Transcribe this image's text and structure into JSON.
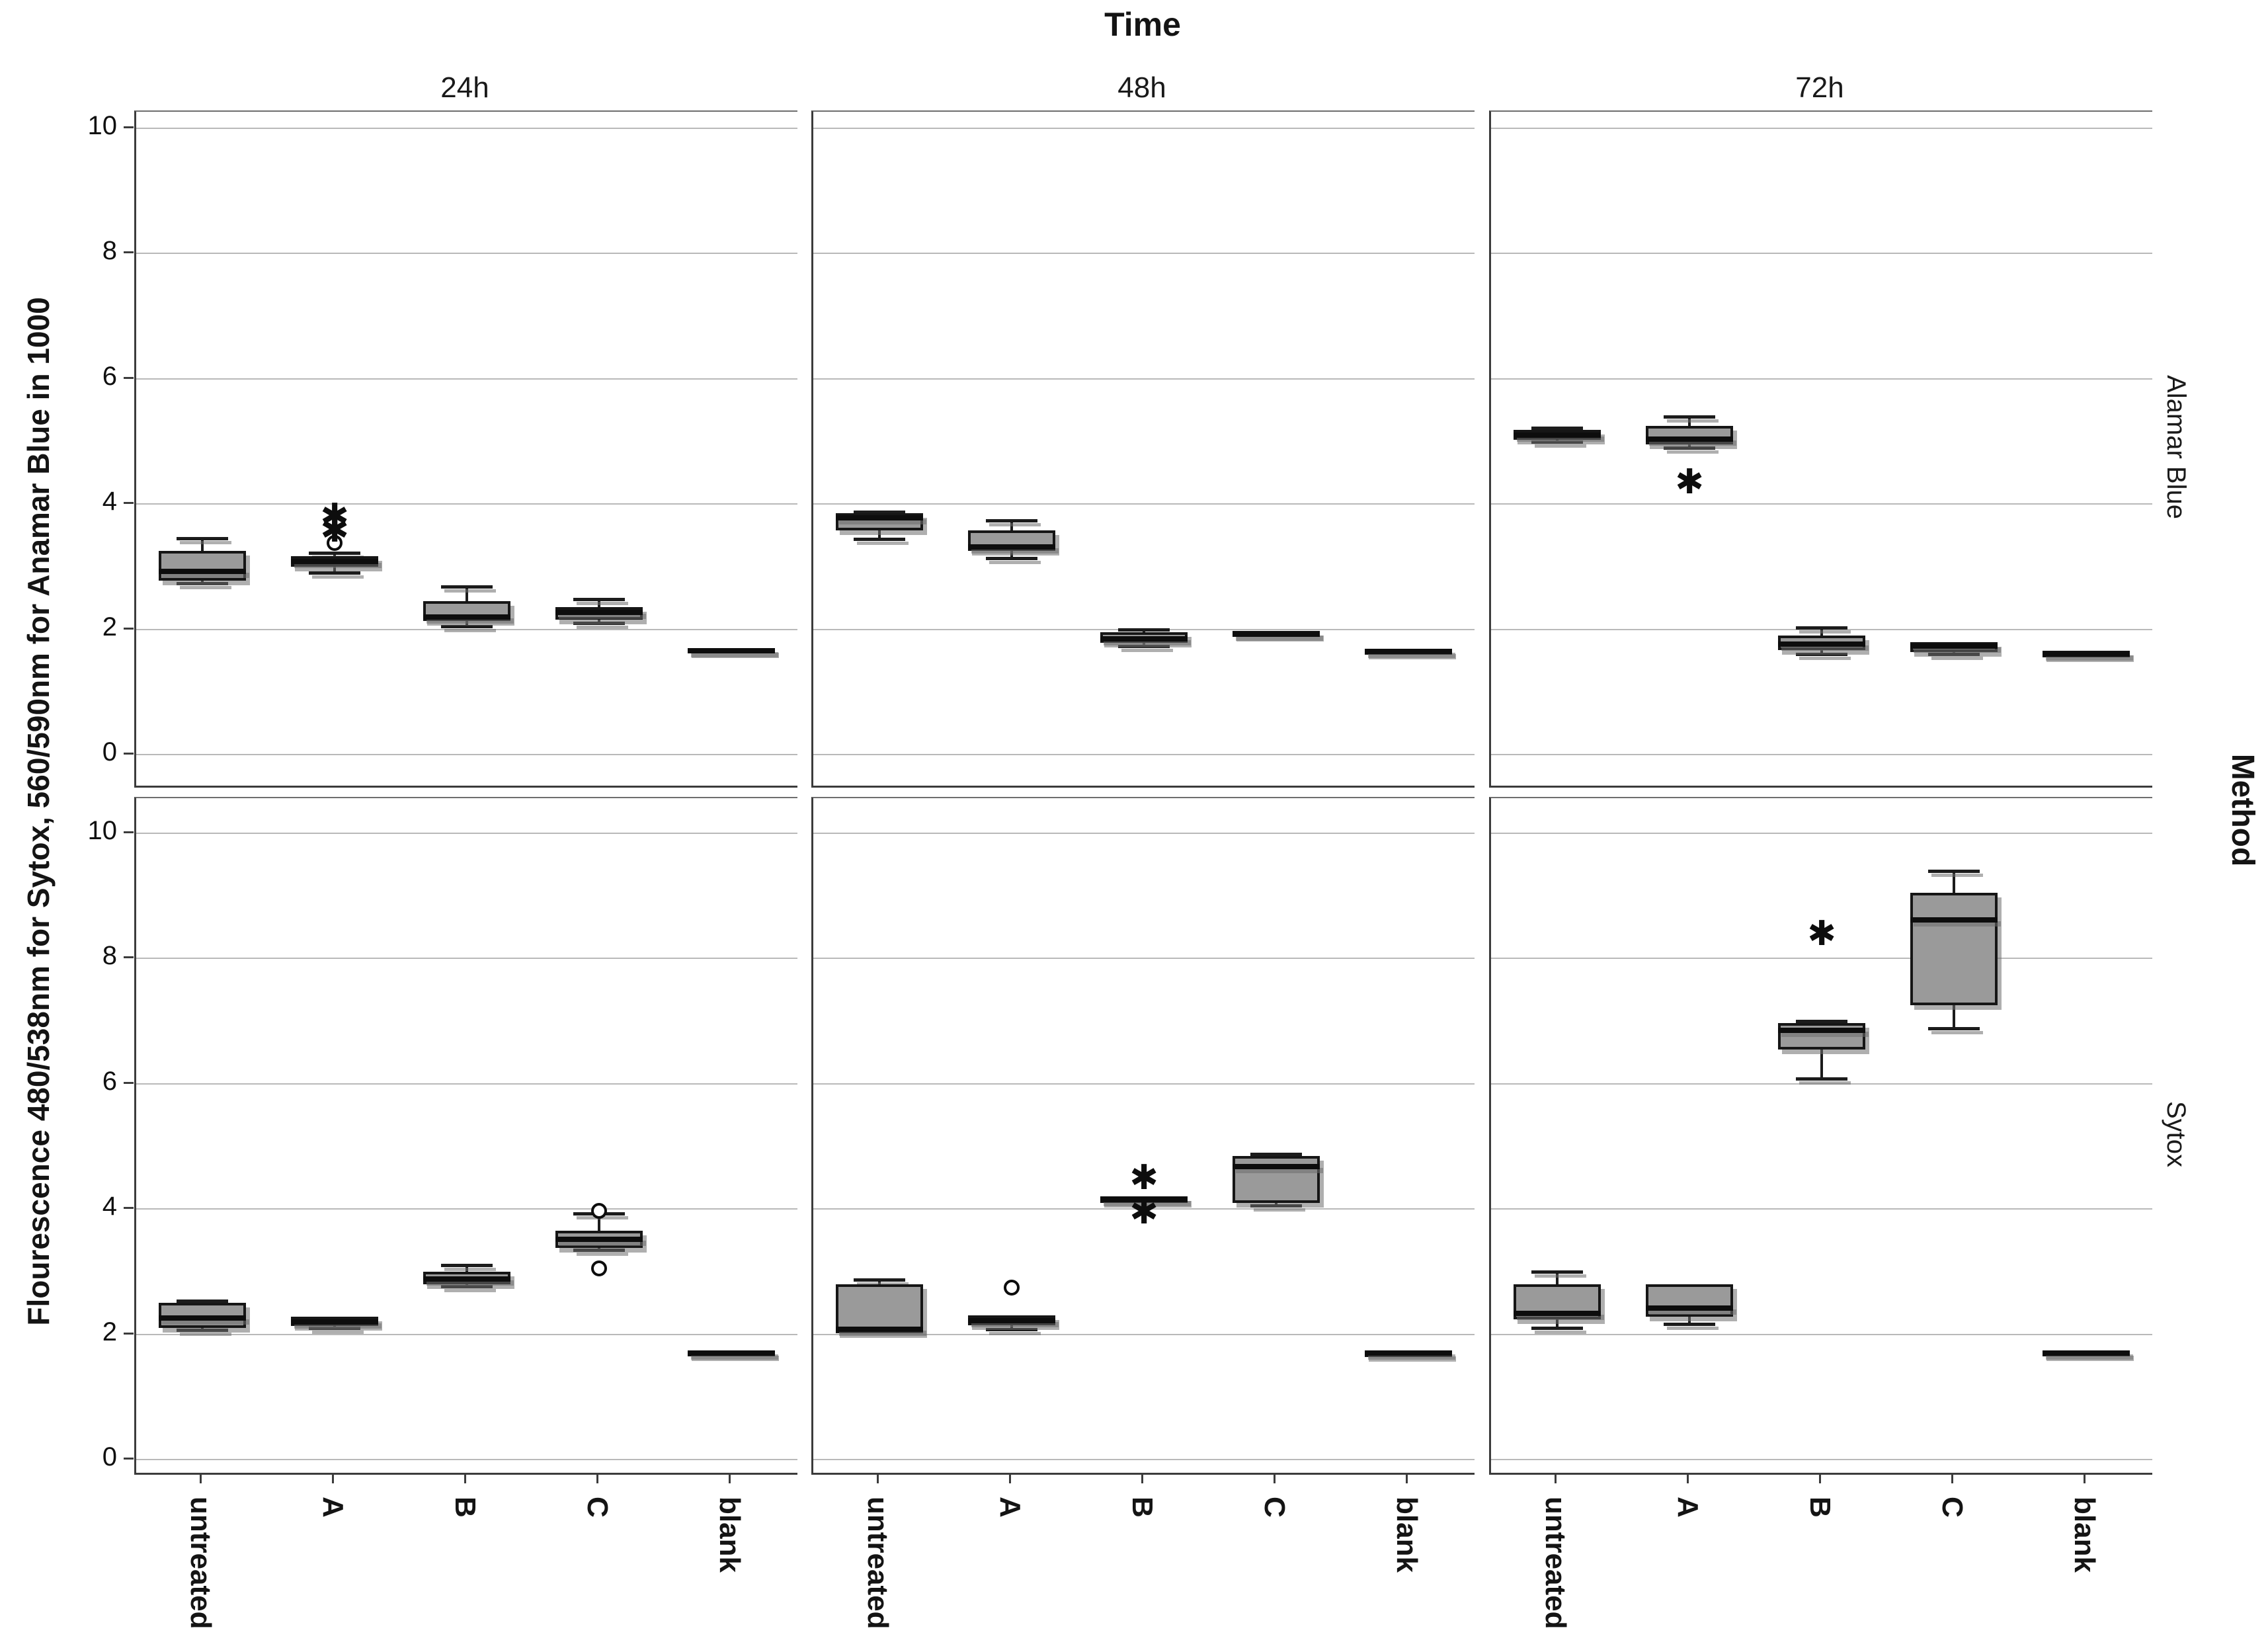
{
  "title": "Time",
  "y_axis_label": "Flourescence 480/538nm for Sytox, 560/590nm for Anamar Blue in 1000",
  "right_outer_label": "Method",
  "col_headers": [
    "24h",
    "48h",
    "72h"
  ],
  "row_headers": [
    "Alamar Blue",
    "Sytox"
  ],
  "categories": [
    "untreated",
    "A",
    "B",
    "C",
    "blank"
  ],
  "y_tick_labels": [
    "0",
    "2",
    "4",
    "6",
    "8",
    "10"
  ],
  "colors": {
    "box_fill": "#9a9a9a",
    "box_border": "#161616",
    "grid": "#b9b9b9",
    "frame": "#3c3c3c",
    "background": "#ffffff"
  },
  "chart_data": {
    "type": "boxplot",
    "facet_title": "Time",
    "facet_cols": [
      "24h",
      "48h",
      "72h"
    ],
    "facet_rows": [
      "Alamar Blue",
      "Sytox"
    ],
    "categories": [
      "untreated",
      "A",
      "B",
      "C",
      "blank"
    ],
    "ylim": [
      0,
      10
    ],
    "y_ticks": [
      0,
      2,
      4,
      6,
      8,
      10
    ],
    "grid": true,
    "panels": [
      {
        "row": "Alamar Blue",
        "col": "24h",
        "boxes": [
          {
            "category": "untreated",
            "q1": 2.78,
            "median": 2.93,
            "q3": 3.25,
            "lo": 2.73,
            "hi": 3.45,
            "outliers": []
          },
          {
            "category": "A",
            "q1": 3.0,
            "median": 3.08,
            "q3": 3.17,
            "lo": 2.9,
            "hi": 3.22,
            "outliers": [
              {
                "type": "circle",
                "value": 3.38
              },
              {
                "type": "star",
                "value": 3.58
              },
              {
                "type": "star",
                "value": 3.8
              }
            ]
          },
          {
            "category": "B",
            "q1": 2.13,
            "median": 2.2,
            "q3": 2.45,
            "lo": 2.05,
            "hi": 2.68,
            "outliers": []
          },
          {
            "category": "C",
            "q1": 2.15,
            "median": 2.27,
            "q3": 2.35,
            "lo": 2.1,
            "hi": 2.48,
            "outliers": []
          },
          {
            "category": "blank",
            "q1": 1.63,
            "median": 1.66,
            "q3": 1.7,
            "lo": 1.63,
            "hi": 1.7,
            "outliers": []
          }
        ]
      },
      {
        "row": "Alamar Blue",
        "col": "48h",
        "boxes": [
          {
            "category": "untreated",
            "q1": 3.58,
            "median": 3.78,
            "q3": 3.85,
            "lo": 3.44,
            "hi": 3.88,
            "outliers": []
          },
          {
            "category": "A",
            "q1": 3.25,
            "median": 3.32,
            "q3": 3.58,
            "lo": 3.14,
            "hi": 3.74,
            "outliers": []
          },
          {
            "category": "B",
            "q1": 1.78,
            "median": 1.85,
            "q3": 1.95,
            "lo": 1.73,
            "hi": 2.0,
            "outliers": []
          },
          {
            "category": "C",
            "q1": 1.88,
            "median": 1.92,
            "q3": 1.97,
            "lo": 1.86,
            "hi": 1.99,
            "outliers": []
          },
          {
            "category": "blank",
            "q1": 1.62,
            "median": 1.65,
            "q3": 1.68,
            "lo": 1.62,
            "hi": 1.68,
            "outliers": []
          }
        ]
      },
      {
        "row": "Alamar Blue",
        "col": "72h",
        "boxes": [
          {
            "category": "untreated",
            "q1": 5.03,
            "median": 5.1,
            "q3": 5.18,
            "lo": 5.0,
            "hi": 5.22,
            "outliers": []
          },
          {
            "category": "A",
            "q1": 4.95,
            "median": 5.04,
            "q3": 5.25,
            "lo": 4.9,
            "hi": 5.4,
            "outliers": [
              {
                "type": "star",
                "value": 4.35
              }
            ]
          },
          {
            "category": "B",
            "q1": 1.67,
            "median": 1.76,
            "q3": 1.9,
            "lo": 1.6,
            "hi": 2.03,
            "outliers": []
          },
          {
            "category": "C",
            "q1": 1.64,
            "median": 1.73,
            "q3": 1.8,
            "lo": 1.6,
            "hi": 1.82,
            "outliers": []
          },
          {
            "category": "blank",
            "q1": 1.55,
            "median": 1.61,
            "q3": 1.66,
            "lo": 1.53,
            "hi": 1.68,
            "outliers": []
          }
        ]
      },
      {
        "row": "Sytox",
        "col": "24h",
        "boxes": [
          {
            "category": "untreated",
            "q1": 2.1,
            "median": 2.26,
            "q3": 2.5,
            "lo": 2.07,
            "hi": 2.53,
            "outliers": []
          },
          {
            "category": "A",
            "q1": 2.13,
            "median": 2.2,
            "q3": 2.28,
            "lo": 2.1,
            "hi": 2.3,
            "outliers": []
          },
          {
            "category": "B",
            "q1": 2.8,
            "median": 2.88,
            "q3": 3.0,
            "lo": 2.77,
            "hi": 3.1,
            "outliers": []
          },
          {
            "category": "C",
            "q1": 3.38,
            "median": 3.52,
            "q3": 3.65,
            "lo": 3.35,
            "hi": 3.93,
            "outliers": [
              {
                "type": "circle",
                "value": 3.97
              },
              {
                "type": "circle",
                "value": 3.05
              }
            ]
          },
          {
            "category": "blank",
            "q1": 1.68,
            "median": 1.7,
            "q3": 1.73,
            "lo": 1.68,
            "hi": 1.73,
            "outliers": []
          }
        ]
      },
      {
        "row": "Sytox",
        "col": "48h",
        "boxes": [
          {
            "category": "untreated",
            "q1": 2.02,
            "median": 2.08,
            "q3": 2.8,
            "lo": 2.0,
            "hi": 2.87,
            "outliers": []
          },
          {
            "category": "A",
            "q1": 2.14,
            "median": 2.22,
            "q3": 2.3,
            "lo": 2.08,
            "hi": 2.32,
            "outliers": [
              {
                "type": "circle",
                "value": 2.75
              }
            ]
          },
          {
            "category": "B",
            "q1": 4.1,
            "median": 4.15,
            "q3": 4.2,
            "lo": 4.08,
            "hi": 4.22,
            "outliers": [
              {
                "type": "star",
                "value": 4.5
              },
              {
                "type": "star",
                "value": 3.95
              }
            ]
          },
          {
            "category": "C",
            "q1": 4.1,
            "median": 4.68,
            "q3": 4.85,
            "lo": 4.05,
            "hi": 4.88,
            "outliers": []
          },
          {
            "category": "blank",
            "q1": 1.68,
            "median": 1.7,
            "q3": 1.72,
            "lo": 1.68,
            "hi": 1.72,
            "outliers": []
          }
        ]
      },
      {
        "row": "Sytox",
        "col": "72h",
        "boxes": [
          {
            "category": "untreated",
            "q1": 2.24,
            "median": 2.33,
            "q3": 2.8,
            "lo": 2.1,
            "hi": 3.0,
            "outliers": []
          },
          {
            "category": "A",
            "q1": 2.28,
            "median": 2.42,
            "q3": 2.8,
            "lo": 2.17,
            "hi": 2.82,
            "outliers": []
          },
          {
            "category": "B",
            "q1": 6.55,
            "median": 6.85,
            "q3": 6.97,
            "lo": 6.08,
            "hi": 7.0,
            "outliers": [
              {
                "type": "star",
                "value": 8.4
              }
            ]
          },
          {
            "category": "C",
            "q1": 7.25,
            "median": 8.62,
            "q3": 9.05,
            "lo": 6.88,
            "hi": 9.4,
            "outliers": []
          },
          {
            "category": "blank",
            "q1": 1.68,
            "median": 1.7,
            "q3": 1.73,
            "lo": 1.68,
            "hi": 1.73,
            "outliers": []
          }
        ]
      }
    ]
  }
}
